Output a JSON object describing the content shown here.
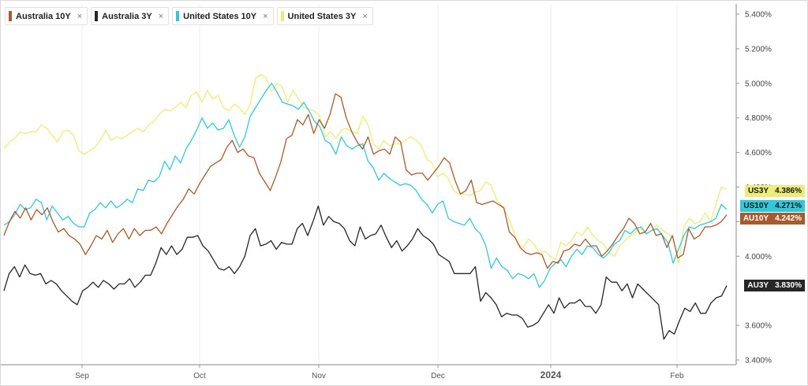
{
  "chart_data": {
    "type": "line",
    "x_labels": [
      "Sep",
      "Oct",
      "Nov",
      "Dec",
      "2024",
      "Feb"
    ],
    "y_ticks": [
      "3.400%",
      "3.600%",
      "4.000%",
      "4.200%",
      "4.400%",
      "4.600%",
      "4.800%",
      "5.000%",
      "5.200%",
      "5.400%"
    ],
    "ylim": [
      3.4,
      5.45
    ],
    "grid": "vertical",
    "legend_position": "top-left",
    "close_glyph": "×",
    "series": [
      {
        "name": "Australia 10Y",
        "color": "#a65b2f",
        "tag": "AU10Y",
        "tag_value": "4.242%",
        "tag_text_color": "#ffffff",
        "values": [
          4.12,
          4.2,
          4.26,
          4.22,
          4.28,
          4.21,
          4.27,
          4.24,
          4.28,
          4.2,
          4.14,
          4.16,
          4.12,
          4.1,
          4.07,
          4.01,
          4.06,
          4.12,
          4.1,
          4.15,
          4.08,
          4.13,
          4.16,
          4.1,
          4.16,
          4.12,
          4.15,
          4.15,
          4.17,
          4.13,
          4.19,
          4.24,
          4.29,
          4.33,
          4.39,
          4.36,
          4.42,
          4.47,
          4.52,
          4.54,
          4.56,
          4.63,
          4.67,
          4.6,
          4.62,
          4.58,
          4.57,
          4.48,
          4.43,
          4.38,
          4.46,
          4.55,
          4.68,
          4.7,
          4.79,
          4.76,
          4.82,
          4.71,
          4.79,
          4.74,
          4.82,
          4.94,
          4.92,
          4.8,
          4.72,
          4.66,
          4.62,
          4.69,
          4.59,
          4.61,
          4.62,
          4.59,
          4.69,
          4.66,
          4.5,
          4.47,
          4.48,
          4.48,
          4.44,
          4.48,
          4.52,
          4.57,
          4.54,
          4.44,
          4.36,
          4.38,
          4.44,
          4.31,
          4.3,
          4.31,
          4.32,
          4.3,
          4.28,
          4.14,
          4.11,
          4.05,
          4.02,
          4.01,
          4.02,
          4.01,
          3.93,
          3.97,
          3.96,
          4.03,
          4.04,
          4.07,
          4.06,
          4.1,
          4.06,
          4.06,
          4.0,
          4.03,
          4.07,
          4.12,
          4.16,
          4.22,
          4.19,
          4.13,
          4.14,
          4.19,
          4.12,
          4.13,
          4.05,
          4.12,
          3.99,
          4.01,
          4.16,
          4.1,
          4.12,
          4.17,
          4.17,
          4.18,
          4.2,
          4.24
        ]
      },
      {
        "name": "Australia 3Y",
        "color": "#262626",
        "tag": "AU3Y",
        "tag_value": "3.830%",
        "tag_text_color": "#ffffff",
        "values": [
          3.8,
          3.9,
          3.94,
          3.88,
          3.95,
          3.9,
          3.89,
          3.9,
          3.84,
          3.86,
          3.84,
          3.8,
          3.77,
          3.74,
          3.72,
          3.8,
          3.82,
          3.85,
          3.82,
          3.86,
          3.84,
          3.81,
          3.84,
          3.84,
          3.87,
          3.82,
          3.85,
          3.89,
          3.89,
          3.96,
          4.05,
          4.01,
          4.06,
          4.01,
          4.04,
          4.11,
          4.11,
          4.12,
          4.06,
          4.03,
          3.98,
          3.93,
          3.92,
          3.94,
          3.9,
          3.94,
          4.0,
          4.12,
          4.16,
          4.06,
          4.07,
          4.09,
          4.04,
          4.08,
          4.07,
          4.07,
          4.16,
          4.19,
          4.12,
          4.2,
          4.29,
          4.18,
          4.23,
          4.2,
          4.19,
          4.16,
          4.09,
          4.06,
          4.17,
          4.1,
          4.12,
          4.13,
          4.18,
          4.11,
          4.05,
          4.09,
          4.03,
          4.06,
          4.1,
          4.16,
          4.12,
          4.1,
          4.07,
          4.01,
          3.99,
          3.97,
          3.9,
          3.9,
          3.9,
          3.9,
          3.94,
          3.74,
          3.79,
          3.76,
          3.72,
          3.65,
          3.67,
          3.66,
          3.66,
          3.64,
          3.59,
          3.6,
          3.62,
          3.67,
          3.72,
          3.67,
          3.76,
          3.7,
          3.73,
          3.73,
          3.75,
          3.71,
          3.71,
          3.67,
          3.72,
          3.88,
          3.85,
          3.85,
          3.8,
          3.84,
          3.76,
          3.84,
          3.81,
          3.78,
          3.75,
          3.72,
          3.52,
          3.57,
          3.55,
          3.63,
          3.7,
          3.68,
          3.73,
          3.67,
          3.67,
          3.73,
          3.76,
          3.77,
          3.83
        ]
      },
      {
        "name": "United States 10Y",
        "color": "#32c8d9",
        "tag": "US10Y",
        "tag_value": "4.271%",
        "tag_text_color": "#1a1a1a",
        "values": [
          4.18,
          4.2,
          4.24,
          4.3,
          4.27,
          4.28,
          4.33,
          4.31,
          4.21,
          4.29,
          4.25,
          4.21,
          4.23,
          4.19,
          4.17,
          4.17,
          4.25,
          4.27,
          4.31,
          4.28,
          4.32,
          4.28,
          4.3,
          4.33,
          4.31,
          4.39,
          4.38,
          4.44,
          4.43,
          4.46,
          4.55,
          4.5,
          4.58,
          4.54,
          4.62,
          4.67,
          4.73,
          4.8,
          4.74,
          4.77,
          4.73,
          4.74,
          4.79,
          4.7,
          4.63,
          4.69,
          4.81,
          4.86,
          4.91,
          4.96,
          5.0,
          4.95,
          4.89,
          4.88,
          4.87,
          4.85,
          4.89,
          4.84,
          4.78,
          4.75,
          4.67,
          4.65,
          4.59,
          4.69,
          4.64,
          4.62,
          4.64,
          4.65,
          4.55,
          4.51,
          4.44,
          4.48,
          4.45,
          4.43,
          4.41,
          4.42,
          4.41,
          4.38,
          4.33,
          4.3,
          4.25,
          4.3,
          4.32,
          4.22,
          4.2,
          4.19,
          4.18,
          4.22,
          4.16,
          4.13,
          4.06,
          3.93,
          3.99,
          3.94,
          3.92,
          3.87,
          3.9,
          3.89,
          3.87,
          3.9,
          3.82,
          3.86,
          3.93,
          3.96,
          3.98,
          3.94,
          4.0,
          4.04,
          4.01,
          4.06,
          4.05,
          4.01,
          3.99,
          4.02,
          4.07,
          4.09,
          4.15,
          4.13,
          4.16,
          4.17,
          4.13,
          4.15,
          4.16,
          4.12,
          4.08,
          3.96,
          4.04,
          4.12,
          4.17,
          4.16,
          4.18,
          4.19,
          4.2,
          4.22,
          4.3,
          4.27
        ]
      },
      {
        "name": "United States 3Y",
        "color": "#ecec7a",
        "tag": "US3Y",
        "tag_value": "4.386%",
        "tag_text_color": "#1a1a1a",
        "values": [
          4.62,
          4.66,
          4.68,
          4.72,
          4.71,
          4.72,
          4.72,
          4.76,
          4.74,
          4.7,
          4.66,
          4.72,
          4.73,
          4.7,
          4.61,
          4.59,
          4.61,
          4.63,
          4.67,
          4.73,
          4.67,
          4.69,
          4.68,
          4.7,
          4.72,
          4.74,
          4.72,
          4.76,
          4.78,
          4.82,
          4.85,
          4.84,
          4.86,
          4.89,
          4.86,
          4.93,
          4.95,
          4.89,
          4.96,
          4.91,
          4.93,
          4.86,
          4.84,
          4.88,
          4.86,
          4.82,
          4.88,
          5.03,
          5.05,
          5.03,
          4.95,
          5.0,
          4.98,
          4.89,
          4.96,
          4.91,
          4.86,
          4.85,
          4.84,
          4.81,
          4.69,
          4.72,
          4.68,
          4.73,
          4.74,
          4.72,
          4.71,
          4.81,
          4.76,
          4.65,
          4.62,
          4.67,
          4.64,
          4.65,
          4.65,
          4.67,
          4.69,
          4.67,
          4.64,
          4.56,
          4.54,
          4.46,
          4.48,
          4.45,
          4.38,
          4.36,
          4.36,
          4.35,
          4.37,
          4.38,
          4.43,
          4.41,
          4.33,
          4.29,
          4.24,
          4.16,
          4.07,
          4.05,
          4.1,
          4.07,
          4.02,
          4.03,
          4.0,
          3.98,
          4.08,
          4.06,
          4.09,
          4.14,
          4.12,
          4.17,
          4.12,
          4.09,
          4.07,
          4.02,
          4.0,
          4.06,
          4.09,
          4.12,
          4.14,
          4.16,
          4.13,
          4.15,
          4.18,
          4.15,
          4.13,
          4.11,
          3.96,
          4.17,
          4.22,
          4.19,
          4.2,
          4.25,
          4.2,
          4.3,
          4.4,
          4.386
        ]
      }
    ]
  }
}
